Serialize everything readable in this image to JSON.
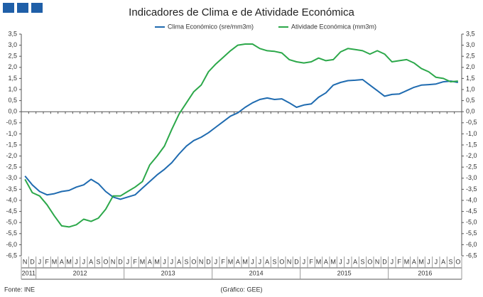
{
  "chart_data": {
    "type": "line",
    "title": "Indicadores de Clima e de Atividade Económica",
    "source": "Fonte: INE",
    "credit": "(Gráfico: GEE)",
    "category_groups": [
      {
        "label": "2011",
        "categories": [
          "N",
          "D"
        ]
      },
      {
        "label": "2012",
        "categories": [
          "J",
          "F",
          "M",
          "A",
          "M",
          "J",
          "J",
          "A",
          "S",
          "O",
          "N",
          "D"
        ]
      },
      {
        "label": "2013",
        "categories": [
          "J",
          "F",
          "M",
          "A",
          "M",
          "J",
          "J",
          "A",
          "S",
          "O",
          "N",
          "D"
        ]
      },
      {
        "label": "2014",
        "categories": [
          "J",
          "F",
          "M",
          "A",
          "M",
          "J",
          "J",
          "A",
          "S",
          "O",
          "N",
          "D"
        ]
      },
      {
        "label": "2015",
        "categories": [
          "J",
          "F",
          "M",
          "A",
          "M",
          "J",
          "J",
          "A",
          "S",
          "O",
          "N",
          "D"
        ]
      },
      {
        "label": "2016",
        "categories": [
          "J",
          "F",
          "M",
          "A",
          "M",
          "J",
          "J",
          "A",
          "S",
          "O"
        ]
      }
    ],
    "series": [
      {
        "name": "Clima Económico (sre/mm3m)",
        "color": "#1f6bb0",
        "values": [
          -2.9,
          -3.3,
          -3.6,
          -3.75,
          -3.7,
          -3.6,
          -3.55,
          -3.4,
          -3.3,
          -3.05,
          -3.25,
          -3.6,
          -3.85,
          -3.95,
          -3.85,
          -3.75,
          -3.45,
          -3.15,
          -2.85,
          -2.6,
          -2.3,
          -1.9,
          -1.55,
          -1.3,
          -1.15,
          -0.95,
          -0.7,
          -0.45,
          -0.2,
          -0.05,
          0.2,
          0.4,
          0.55,
          0.62,
          0.55,
          0.58,
          0.4,
          0.2,
          0.3,
          0.35,
          0.65,
          0.85,
          1.2,
          1.32,
          1.4,
          1.42,
          1.45,
          1.2,
          0.95,
          0.7,
          0.78,
          0.8,
          0.95,
          1.1,
          1.2,
          1.22,
          1.25,
          1.35,
          1.38,
          1.32
        ]
      },
      {
        "name": "Atividade Económica (mm3m)",
        "color": "#2ca84a",
        "axis": "y2",
        "values": [
          -3.05,
          -3.65,
          -3.8,
          -4.2,
          -4.7,
          -5.15,
          -5.2,
          -5.1,
          -4.85,
          -4.95,
          -4.8,
          -4.4,
          -3.8,
          -3.8,
          -3.6,
          -3.4,
          -3.15,
          -2.4,
          -2.0,
          -1.55,
          -0.8,
          -0.1,
          0.4,
          0.9,
          1.2,
          1.8,
          2.15,
          2.45,
          2.75,
          3.0,
          3.05,
          3.05,
          2.85,
          2.75,
          2.72,
          2.65,
          2.35,
          2.25,
          2.2,
          2.25,
          2.42,
          2.3,
          2.35,
          2.7,
          2.85,
          2.8,
          2.75,
          2.6,
          2.75,
          2.6,
          2.25,
          2.3,
          2.35,
          2.2,
          1.95,
          1.8,
          1.55,
          1.5,
          1.35,
          1.38
        ]
      }
    ],
    "ylim": [
      -6.5,
      3.5
    ],
    "yticks": [
      {
        "value": 3.5,
        "label": "3,5"
      },
      {
        "value": 3,
        "label": "3,0"
      },
      {
        "value": 2.5,
        "label": "2,5"
      },
      {
        "value": 2,
        "label": "2,0"
      },
      {
        "value": 1.5,
        "label": "1,5"
      },
      {
        "value": 1,
        "label": "1,0"
      },
      {
        "value": 0.5,
        "label": "0,5"
      },
      {
        "value": 0,
        "label": "0,0"
      },
      {
        "value": -0.5,
        "label": "-0,5"
      },
      {
        "value": -1,
        "label": "-1,0"
      },
      {
        "value": -1.5,
        "label": "-1,5"
      },
      {
        "value": -2,
        "label": "-2,0"
      },
      {
        "value": -2.5,
        "label": "-2,5"
      },
      {
        "value": -3,
        "label": "-3,0"
      },
      {
        "value": -3.5,
        "label": "-3,5"
      },
      {
        "value": -4,
        "label": "-4,0"
      },
      {
        "value": -4.5,
        "label": "-4,5"
      },
      {
        "value": -5,
        "label": "-5,0"
      },
      {
        "value": -5.5,
        "label": "-5,5"
      },
      {
        "value": -6,
        "label": "-6,0"
      },
      {
        "value": -6.5,
        "label": "-6,5"
      }
    ],
    "y2lim": [
      -6.5,
      3.5
    ],
    "y2ticks": [
      {
        "value": 3.5,
        "label": "3,5"
      },
      {
        "value": 3,
        "label": "3,0"
      },
      {
        "value": 2.5,
        "label": "2,5"
      },
      {
        "value": 2,
        "label": "2,0"
      },
      {
        "value": 1.5,
        "label": "1,5"
      },
      {
        "value": 1,
        "label": "1,0"
      },
      {
        "value": 0.5,
        "label": "0,5"
      },
      {
        "value": 0,
        "label": "0,0"
      },
      {
        "value": -0.5,
        "label": "-0,5"
      },
      {
        "value": -1,
        "label": "-1,0"
      },
      {
        "value": -1.5,
        "label": "-1,5"
      },
      {
        "value": -2,
        "label": "-2,0"
      },
      {
        "value": -2.5,
        "label": "-2,5"
      },
      {
        "value": -3,
        "label": "-3,0"
      },
      {
        "value": -3.5,
        "label": "-3,5"
      },
      {
        "value": -4,
        "label": "-4,0"
      },
      {
        "value": -4.5,
        "label": "-4,5"
      },
      {
        "value": -5,
        "label": "-5,0"
      },
      {
        "value": -5.5,
        "label": "-5,5"
      },
      {
        "value": -6,
        "label": "-6,0"
      },
      {
        "value": -6.5,
        "label": "-6,5"
      }
    ],
    "legend": "top"
  }
}
